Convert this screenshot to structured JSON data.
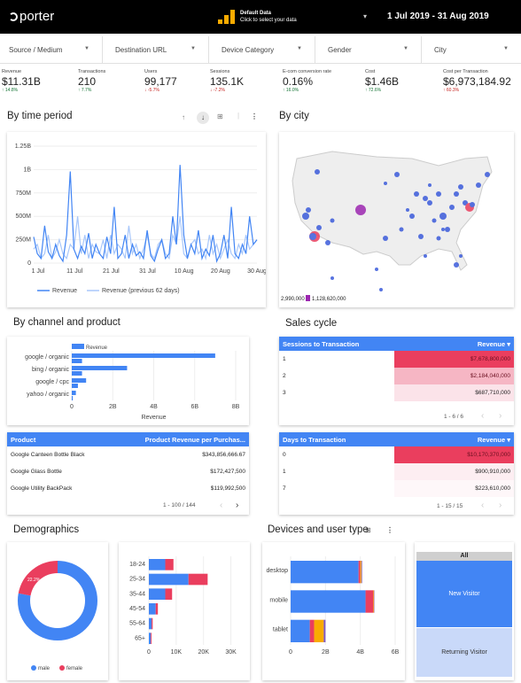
{
  "header": {
    "logo": "porter",
    "datasource_title": "Default Data",
    "datasource_sub": "Click to select your data",
    "date_range": "1 Jul 2019 - 31 Aug 2019"
  },
  "filters": [
    {
      "label": "Source / Medium"
    },
    {
      "label": "Destination URL"
    },
    {
      "label": "Device Category"
    },
    {
      "label": "Gender"
    },
    {
      "label": "City"
    }
  ],
  "kpis": [
    {
      "label": "Revenue",
      "value": "$11.31B",
      "delta": "↑ 14.8%",
      "dir": "up"
    },
    {
      "label": "Transactions",
      "value": "210",
      "delta": "↑ 7.7%",
      "dir": "up"
    },
    {
      "label": "Users",
      "value": "99,177",
      "delta": "↓ -5.7%",
      "dir": "dn"
    },
    {
      "label": "Sessions",
      "value": "135.1K",
      "delta": "↓ -7.2%",
      "dir": "dn"
    },
    {
      "label": "E-com conversion rate",
      "value": "0.16%",
      "delta": "↑ 16.0%",
      "dir": "up"
    },
    {
      "label": "Cost",
      "value": "$1.46B",
      "delta": "↑ 72.6%",
      "dir": "up"
    },
    {
      "label": "Cost per Transaction",
      "value": "$6,973,184.92",
      "delta": "↑ 60.3%",
      "dir": "dn"
    }
  ],
  "sections": {
    "time": "By time period",
    "city": "By city",
    "channel": "By channel and product",
    "sales": "Sales cycle",
    "demo": "Demographics",
    "devices": "Devices and user type"
  },
  "chart_data": [
    {
      "type": "line",
      "title": "By time period",
      "x_ticks": [
        "1 Jul",
        "11 Jul",
        "21 Jul",
        "31 Jul",
        "10 Aug",
        "20 Aug",
        "30 Aug"
      ],
      "y_ticks": [
        "0",
        "250M",
        "500M",
        "750M",
        "1B",
        "1.25B"
      ],
      "ylim": [
        0,
        1250000000
      ],
      "series": [
        {
          "name": "Revenue",
          "values": [
            0.28,
            0.1,
            0.05,
            0.4,
            0.12,
            0.05,
            0.2,
            0.08,
            0.02,
            0.3,
            0.98,
            0.15,
            0.05,
            0.18,
            0.1,
            0.32,
            0.05,
            0.2,
            0.1,
            0.05,
            0.28,
            0.1,
            0.6,
            0.05,
            0.1,
            0.3,
            0.05,
            0.2,
            0.08,
            0.12,
            0.05,
            0.35,
            0.08,
            0.02,
            0.15,
            0.25,
            0.05,
            0.1,
            0.5,
            0.2,
            1.05,
            0.3,
            0.05,
            0.2,
            0.1,
            0.35,
            0.05,
            0.15,
            0.08,
            0.3,
            0.02,
            0.1,
            0.3,
            0.05,
            0.6,
            0.1,
            0.05,
            0.2,
            0.1,
            0.5,
            0.2,
            0.25
          ]
        },
        {
          "name": "Revenue (previous 62 days)",
          "values": [
            0.15,
            0.2,
            0.05,
            0.1,
            0.3,
            0.05,
            0.12,
            0.25,
            0.1,
            0.05,
            0.2,
            0.15,
            0.5,
            0.1,
            0.3,
            0.05,
            0.2,
            0.12,
            0.1,
            0.25,
            0.05,
            0.3,
            0.1,
            0.2,
            0.15,
            0.05,
            0.4,
            0.1,
            0.2,
            0.05,
            0.15,
            0.3,
            0.1,
            0.05,
            0.2,
            0.25,
            0.1,
            0.05,
            0.3,
            0.2,
            0.5,
            0.1,
            0.05,
            0.2,
            0.25,
            0.1,
            0.15,
            0.05,
            0.3,
            0.1,
            0.2,
            0.05,
            0.15,
            0.25,
            0.1,
            0.05,
            0.2,
            0.1,
            0.3,
            0.15,
            0.2,
            0.25
          ]
        }
      ]
    },
    {
      "type": "bar",
      "title": "By channel and product",
      "orientation": "horizontal",
      "categories": [
        "google / organic",
        "bing / organic",
        "google / cpc",
        "yahoo / organic"
      ],
      "values": [
        7000000000,
        2700000000,
        700000000,
        200000000
      ],
      "extra_bars": [
        500000000,
        500000000,
        300000000,
        50000000
      ],
      "x_ticks": [
        "0",
        "2B",
        "4B",
        "6B",
        "8B"
      ],
      "xlim": [
        0,
        8000000000
      ],
      "xlabel": "Revenue",
      "series_label": "Revenue"
    },
    {
      "type": "pie",
      "title": "Demographics",
      "categories": [
        "male",
        "female"
      ],
      "values": [
        77.8,
        22.2
      ],
      "value_labels": [
        "77.8%",
        "22.2%"
      ]
    },
    {
      "type": "bar",
      "orientation": "horizontal",
      "stacked": true,
      "categories": [
        "18-24",
        "25-34",
        "35-44",
        "45-54",
        "55-64",
        "65+"
      ],
      "series": [
        {
          "name": "male",
          "values": [
            6000,
            14500,
            6000,
            2500,
            1000,
            700
          ]
        },
        {
          "name": "female",
          "values": [
            3000,
            7000,
            2500,
            800,
            400,
            300
          ]
        }
      ],
      "x_ticks": [
        "0",
        "10K",
        "20K",
        "30K"
      ],
      "xlim": [
        0,
        35000
      ]
    },
    {
      "type": "bar",
      "orientation": "horizontal",
      "stacked": true,
      "categories": [
        "desktop",
        "mobile",
        "tablet"
      ],
      "segments": [
        [
          3900000000,
          100000000,
          60000000,
          40000000
        ],
        [
          4300000000,
          450000000,
          40000000,
          20000000
        ],
        [
          1100000000,
          250000000,
          550000000,
          100000000
        ]
      ],
      "seg_colors": [
        "#4285f4",
        "#ea3e5e",
        "#f9ab00",
        "#7e57c2"
      ],
      "x_ticks": [
        "0",
        "2B",
        "4B",
        "6B"
      ],
      "xlim": [
        0,
        6000000000
      ]
    }
  ],
  "map": {
    "legend_min": "2,990,000",
    "legend_max": "1,128,620,000"
  },
  "product_table": {
    "headers": [
      "Product",
      "Product Revenue per Purchas..."
    ],
    "rows": [
      [
        "Google Canteen Bottle Black",
        "$343,856,666.67"
      ],
      [
        "Google Glass Bottle",
        "$172,427,500"
      ],
      [
        "Google Utility BackPack",
        "$119,992,500"
      ]
    ],
    "pager": "1 - 100 / 144"
  },
  "sessions_table": {
    "headers": [
      "Sessions to Transaction",
      "Revenue ▾"
    ],
    "rows": [
      [
        "1",
        "$7,678,800,000"
      ],
      [
        "2",
        "$2,184,040,000"
      ],
      [
        "3",
        "$687,710,000"
      ]
    ],
    "pager": "1 - 6 / 6"
  },
  "days_table": {
    "headers": [
      "Days to Transaction",
      "Revenue ▾"
    ],
    "rows": [
      [
        "0",
        "$10,170,370,000"
      ],
      [
        "1",
        "$900,910,000"
      ],
      [
        "7",
        "$223,610,000"
      ]
    ],
    "pager": "1 - 15 / 15"
  },
  "treemap": {
    "header": "All",
    "new": "New Visitor",
    "returning": "Returning Visitor"
  },
  "colors": {
    "blue": "#4285f4",
    "pink": "#ea3e5e",
    "light_blue": "#a8c7fa",
    "orange": "#f9ab00"
  }
}
